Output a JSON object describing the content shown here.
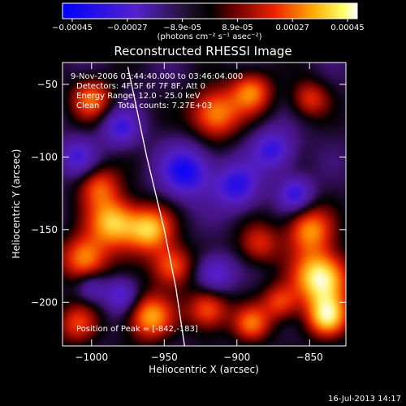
{
  "colorbar": {
    "ticks": [
      "-0.00045",
      "-0.00027",
      "-8.9e-05",
      "8.9e-05",
      "0.00027",
      "0.00045"
    ],
    "unit_label": "(photons cm⁻² s⁻¹ asec⁻²)"
  },
  "chart_data": {
    "type": "heatmap",
    "title": "Reconstructed RHESSI Image",
    "xlabel": "Heliocentric X (arcsec)",
    "ylabel": "Heliocentric Y (arcsec)",
    "xlim": [
      -1020,
      -825
    ],
    "ylim": [
      -230,
      -35
    ],
    "xticks": [
      -1000,
      -950,
      -900,
      -850
    ],
    "yticks": [
      -50,
      -100,
      -150,
      -200
    ],
    "colorbar_range": [
      -0.00045,
      0.00045
    ],
    "colormap": "blue-purple-black-red-yellow-white",
    "annotations": {
      "time_range": "9-Nov-2006 03:44:40.000 to 03:46:04.000",
      "detectors": "Detectors: 4F 5F 6F 7F 8F, Att 0",
      "energy": "Energy Range: 12.0 - 25.0 keV",
      "algorithm": "Clean",
      "counts": "Total counts: 7.27E+03",
      "peak": "Position of Peak = [-842,-183]"
    },
    "peak_position": [
      -842,
      -183
    ],
    "limb_curve": [
      [
        -975,
        -38
      ],
      [
        -962,
        -100
      ],
      [
        -950,
        -150
      ],
      [
        -942,
        -190
      ],
      [
        -936,
        -230
      ]
    ],
    "blobs": [
      {
        "x": -985,
        "y": -145,
        "amp": 0.8,
        "sigma": 12
      },
      {
        "x": -1005,
        "y": -170,
        "amp": 0.7,
        "sigma": 11
      },
      {
        "x": -995,
        "y": -120,
        "amp": 0.5,
        "sigma": 10
      },
      {
        "x": -960,
        "y": -150,
        "amp": 0.75,
        "sigma": 11
      },
      {
        "x": -945,
        "y": -175,
        "amp": 0.6,
        "sigma": 10
      },
      {
        "x": -960,
        "y": -210,
        "amp": 0.7,
        "sigma": 11
      },
      {
        "x": -920,
        "y": -205,
        "amp": 0.6,
        "sigma": 10
      },
      {
        "x": -890,
        "y": -215,
        "amp": 0.55,
        "sigma": 9
      },
      {
        "x": -915,
        "y": -70,
        "amp": 0.7,
        "sigma": 12
      },
      {
        "x": -890,
        "y": -55,
        "amp": 0.6,
        "sigma": 10
      },
      {
        "x": -850,
        "y": -60,
        "amp": 0.45,
        "sigma": 9
      },
      {
        "x": -885,
        "y": -160,
        "amp": 0.45,
        "sigma": 10
      },
      {
        "x": -850,
        "y": -150,
        "amp": 0.65,
        "sigma": 11
      },
      {
        "x": -842,
        "y": -183,
        "amp": 1.0,
        "sigma": 13
      },
      {
        "x": -838,
        "y": -210,
        "amp": 0.8,
        "sigma": 10
      },
      {
        "x": -870,
        "y": -200,
        "amp": 0.5,
        "sigma": 9
      },
      {
        "x": -1000,
        "y": -60,
        "amp": 0.55,
        "sigma": 10
      },
      {
        "x": -1010,
        "y": -215,
        "amp": 0.45,
        "sigma": 10
      },
      {
        "x": -935,
        "y": -110,
        "amp": -0.7,
        "sigma": 12
      },
      {
        "x": -900,
        "y": -120,
        "amp": -0.6,
        "sigma": 11
      },
      {
        "x": -980,
        "y": -80,
        "amp": -0.5,
        "sigma": 9
      },
      {
        "x": -1010,
        "y": -100,
        "amp": -0.45,
        "sigma": 9
      },
      {
        "x": -875,
        "y": -95,
        "amp": -0.55,
        "sigma": 10
      },
      {
        "x": -860,
        "y": -125,
        "amp": -0.55,
        "sigma": 8
      },
      {
        "x": -915,
        "y": -180,
        "amp": -0.5,
        "sigma": 9
      },
      {
        "x": -980,
        "y": -195,
        "amp": -0.45,
        "sigma": 8
      },
      {
        "x": -1000,
        "y": -190,
        "amp": -0.35,
        "sigma": 7
      }
    ]
  },
  "footer": {
    "date": "16-Jul-2013 14:17"
  }
}
